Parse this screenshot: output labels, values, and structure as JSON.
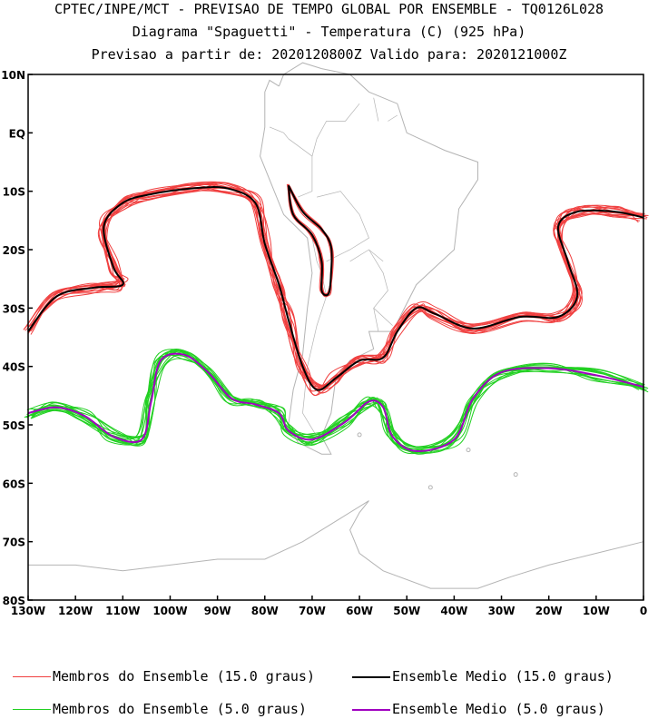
{
  "header": {
    "line1": "CPTEC/INPE/MCT - PREVISAO DE TEMPO GLOBAL POR ENSEMBLE - TQ0126L028",
    "line2": "Diagrama \"Spaguetti\" - Temperatura (C) (925 hPa)",
    "line3": "Previsao a partir de: 2020120800Z  Valido para: 2020121000Z"
  },
  "map": {
    "lat_labels": [
      "10N",
      "EQ",
      "10S",
      "20S",
      "30S",
      "40S",
      "50S",
      "60S",
      "70S",
      "80S"
    ],
    "lon_labels": [
      "130W",
      "120W",
      "110W",
      "100W",
      "90W",
      "80W",
      "70W",
      "60W",
      "50W",
      "40W",
      "30W",
      "20W",
      "10W",
      "0"
    ],
    "lon_range": [
      -130,
      0
    ],
    "lat_range": [
      -80,
      10
    ],
    "coastline_color": "#b4b4b4",
    "colors": {
      "members_15": "#f04040",
      "mean_15": "#000000",
      "members_5": "#22d022",
      "mean_5": "#a000c0"
    }
  },
  "legend": {
    "members_15": "Membros do Ensemble (15.0 graus)",
    "mean_15": "Ensemble Medio (15.0 graus)",
    "members_5": "Membros do Ensemble (5.0 graus)",
    "mean_5": "Ensemble Medio (5.0 graus)"
  }
}
